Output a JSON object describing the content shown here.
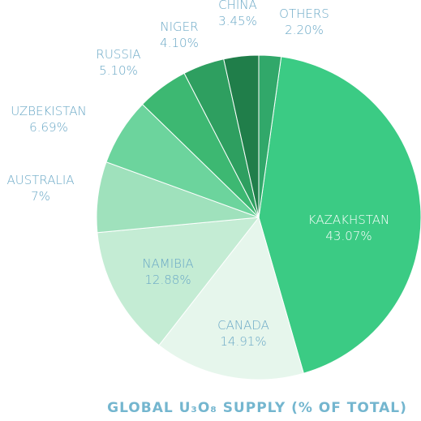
{
  "chart_data": {
    "type": "pie",
    "title": "GLOBAL U₃O₈ SUPPLY (% OF TOTAL)",
    "slices": [
      {
        "label": "KAZAKHSTAN",
        "value_label": "43.07%",
        "value": 43.07,
        "color": "#3bcb84",
        "label_color": "#ffffff"
      },
      {
        "label": "CANADA",
        "value_label": "14.91%",
        "value": 14.91,
        "color": "#e6f6ec",
        "label_color": "#6aa8c6"
      },
      {
        "label": "NAMIBIA",
        "value_label": "12.88%",
        "value": 12.88,
        "color": "#c4ecd4",
        "label_color": "#6aa8c6"
      },
      {
        "label": "AUSTRALIA",
        "value_label": "7%",
        "value": 7.0,
        "color": "#9fe1bc",
        "label_color": "#6aa8c6"
      },
      {
        "label": "UZBEKISTAN",
        "value_label": "6.69%",
        "value": 6.69,
        "color": "#6cd49d",
        "label_color": "#6aa8c6"
      },
      {
        "label": "RUSSIA",
        "value_label": "5.10%",
        "value": 5.1,
        "color": "#3db872",
        "label_color": "#6aa8c6"
      },
      {
        "label": "NIGER",
        "value_label": "4.10%",
        "value": 4.1,
        "color": "#2e9f60",
        "label_color": "#6aa8c6"
      },
      {
        "label": "CHINA",
        "value_label": "3.45%",
        "value": 3.45,
        "color": "#207e4a",
        "label_color": "#6aa8c6"
      },
      {
        "label": "OTHERS",
        "value_label": "2.20%",
        "value": 2.2,
        "color": "#31a86a",
        "label_color": "#6aa8c6"
      }
    ]
  }
}
